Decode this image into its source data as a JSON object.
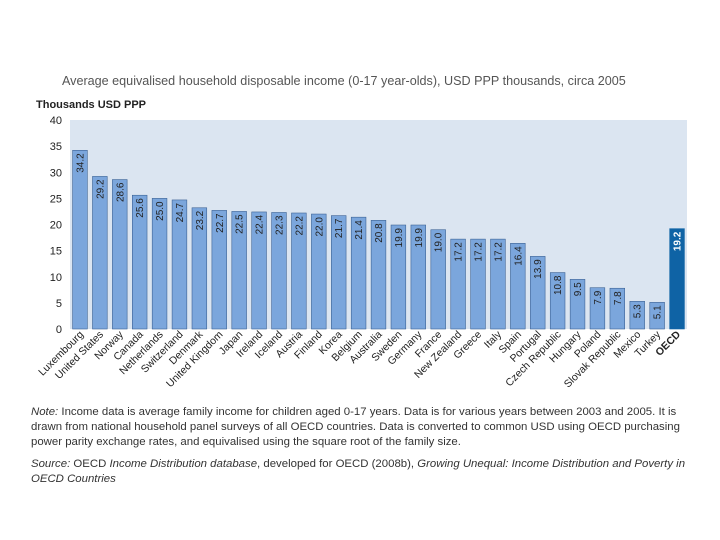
{
  "chart_data": {
    "type": "bar",
    "title": "Average equivalised household disposable income (0-17 year-olds), USD PPP thousands, circa 2005",
    "ylabel": "Thousands USD PPP",
    "xlabel": "",
    "ylim": [
      0,
      40
    ],
    "yticks": [
      "0",
      "5",
      "10",
      "15",
      "20",
      "25",
      "30",
      "35",
      "40"
    ],
    "grid": false,
    "categories": [
      "Luxembourg",
      "United States",
      "Norway",
      "Canada",
      "Netherlands",
      "Switzerland",
      "Denmark",
      "United Kingdom",
      "Japan",
      "Ireland",
      "Iceland",
      "Austria",
      "Finland",
      "Korea",
      "Belgium",
      "Australia",
      "Sweden",
      "Germany",
      "France",
      "New Zealand",
      "Greece",
      "Italy",
      "Spain",
      "Portugal",
      "Czech Republic",
      "Hungary",
      "Poland",
      "Slovak Republic",
      "Mexico",
      "Turkey",
      "OECD"
    ],
    "values": [
      34.2,
      29.2,
      28.6,
      25.6,
      25.0,
      24.7,
      23.2,
      22.7,
      22.5,
      22.4,
      22.3,
      22.2,
      22.0,
      21.7,
      21.4,
      20.8,
      19.9,
      19.9,
      19.0,
      17.2,
      17.2,
      17.2,
      16.4,
      13.9,
      10.8,
      9.5,
      7.9,
      7.8,
      5.3,
      5.1,
      19.2
    ],
    "value_labels": [
      "34.2",
      "29.2",
      "28.6",
      "25.6",
      "25.0",
      "24.7",
      "23.2",
      "22.7",
      "22.5",
      "22.4",
      "22.3",
      "22.2",
      "22.0",
      "21.7",
      "21.4",
      "20.8",
      "19.9",
      "19.9",
      "19.0",
      "17.2",
      "17.2",
      "17.2",
      "16.4",
      "13.9",
      "10.8",
      "9.5",
      "7.9",
      "7.8",
      "5.3",
      "5.1",
      "19.2"
    ],
    "highlight_category": "OECD",
    "colors": {
      "bar": "#7ba6dc",
      "bar_edge": "#3c6294",
      "highlight": "#0f63a5",
      "plot_bg": "#dbe5f1",
      "text": "#222222"
    }
  },
  "note": {
    "lead": "Note:",
    "text": " Income data is average family income for children aged 0-17 years. Data is for various years between 2003 and 2005. It is drawn from national household panel surveys of all OECD countries. Data is converted to common USD using OECD purchasing power parity exchange rates, and equivalised using the square root of the family size."
  },
  "source": {
    "lead": "Source:",
    "part1": " OECD ",
    "db": "Income Distribution database",
    "part2": ", developed for OECD (2008b), ",
    "pub": "Growing Unequal: Income Distribution and Poverty in OECD Countries"
  }
}
